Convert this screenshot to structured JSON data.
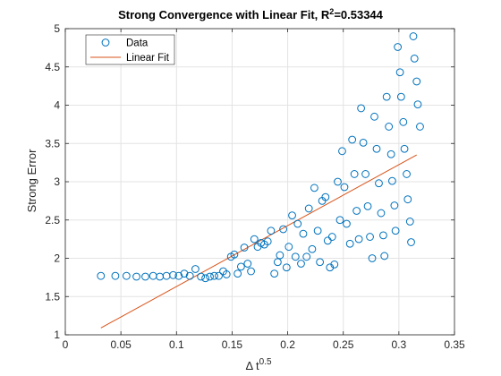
{
  "chart_data": {
    "type": "scatter",
    "title_main": "Strong Convergence with Linear Fit, R",
    "title_sup": "2",
    "title_tail": "=0.53344",
    "xlabel_main": "Δ t",
    "xlabel_sup": "0.5",
    "ylabel": "Strong Error",
    "xlim": [
      0,
      0.35
    ],
    "ylim": [
      1,
      5
    ],
    "xticks": [
      0,
      0.05,
      0.1,
      0.15,
      0.2,
      0.25,
      0.3,
      0.35
    ],
    "xtick_labels": [
      "0",
      "0.05",
      "0.1",
      "0.15",
      "0.2",
      "0.25",
      "0.3",
      "0.35"
    ],
    "yticks": [
      1,
      1.5,
      2,
      2.5,
      3,
      3.5,
      4,
      4.5,
      5
    ],
    "ytick_labels": [
      "1",
      "1.5",
      "2",
      "2.5",
      "3",
      "3.5",
      "4",
      "4.5",
      "5"
    ],
    "grid": true,
    "legend_position": "top-left",
    "colors": {
      "data": "#0072BD",
      "fit": "#D95319"
    },
    "series": [
      {
        "name": "Data",
        "style": "marker-circle",
        "points": [
          [
            0.032,
            1.77
          ],
          [
            0.045,
            1.77
          ],
          [
            0.055,
            1.77
          ],
          [
            0.064,
            1.76
          ],
          [
            0.072,
            1.76
          ],
          [
            0.079,
            1.77
          ],
          [
            0.085,
            1.76
          ],
          [
            0.091,
            1.77
          ],
          [
            0.097,
            1.78
          ],
          [
            0.102,
            1.77
          ],
          [
            0.107,
            1.8
          ],
          [
            0.112,
            1.77
          ],
          [
            0.117,
            1.86
          ],
          [
            0.122,
            1.76
          ],
          [
            0.126,
            1.74
          ],
          [
            0.13,
            1.76
          ],
          [
            0.134,
            1.77
          ],
          [
            0.138,
            1.77
          ],
          [
            0.142,
            1.83
          ],
          [
            0.145,
            1.79
          ],
          [
            0.149,
            2.02
          ],
          [
            0.152,
            2.05
          ],
          [
            0.155,
            1.8
          ],
          [
            0.158,
            1.89
          ],
          [
            0.161,
            2.14
          ],
          [
            0.164,
            1.93
          ],
          [
            0.167,
            1.83
          ],
          [
            0.17,
            2.25
          ],
          [
            0.173,
            2.15
          ],
          [
            0.176,
            2.2
          ],
          [
            0.179,
            2.18
          ],
          [
            0.182,
            2.22
          ],
          [
            0.185,
            2.36
          ],
          [
            0.188,
            1.8
          ],
          [
            0.191,
            1.95
          ],
          [
            0.193,
            2.04
          ],
          [
            0.196,
            2.38
          ],
          [
            0.199,
            1.88
          ],
          [
            0.201,
            2.15
          ],
          [
            0.204,
            2.56
          ],
          [
            0.207,
            2.02
          ],
          [
            0.209,
            2.45
          ],
          [
            0.212,
            1.93
          ],
          [
            0.214,
            2.32
          ],
          [
            0.217,
            2.02
          ],
          [
            0.219,
            2.65
          ],
          [
            0.222,
            2.12
          ],
          [
            0.224,
            2.92
          ],
          [
            0.227,
            2.36
          ],
          [
            0.229,
            1.95
          ],
          [
            0.231,
            2.75
          ],
          [
            0.234,
            2.8
          ],
          [
            0.236,
            2.23
          ],
          [
            0.238,
            1.88
          ],
          [
            0.24,
            2.28
          ],
          [
            0.242,
            1.92
          ],
          [
            0.245,
            3.0
          ],
          [
            0.247,
            2.5
          ],
          [
            0.249,
            3.4
          ],
          [
            0.251,
            2.93
          ],
          [
            0.253,
            2.45
          ],
          [
            0.256,
            2.19
          ],
          [
            0.258,
            3.55
          ],
          [
            0.26,
            3.1
          ],
          [
            0.262,
            2.62
          ],
          [
            0.264,
            2.25
          ],
          [
            0.266,
            3.96
          ],
          [
            0.268,
            3.51
          ],
          [
            0.27,
            3.1
          ],
          [
            0.272,
            2.68
          ],
          [
            0.274,
            2.28
          ],
          [
            0.276,
            2.0
          ],
          [
            0.278,
            3.85
          ],
          [
            0.28,
            3.43
          ],
          [
            0.282,
            2.98
          ],
          [
            0.284,
            2.59
          ],
          [
            0.286,
            2.3
          ],
          [
            0.287,
            2.03
          ],
          [
            0.289,
            4.11
          ],
          [
            0.291,
            3.72
          ],
          [
            0.293,
            3.36
          ],
          [
            0.294,
            3.01
          ],
          [
            0.296,
            2.69
          ],
          [
            0.297,
            2.36
          ],
          [
            0.299,
            4.76
          ],
          [
            0.301,
            4.43
          ],
          [
            0.302,
            4.11
          ],
          [
            0.304,
            3.78
          ],
          [
            0.305,
            3.43
          ],
          [
            0.307,
            3.1
          ],
          [
            0.308,
            2.77
          ],
          [
            0.31,
            2.48
          ],
          [
            0.311,
            2.21
          ],
          [
            0.313,
            4.9
          ],
          [
            0.314,
            4.61
          ],
          [
            0.316,
            4.31
          ],
          [
            0.317,
            4.01
          ],
          [
            0.319,
            3.72
          ]
        ]
      },
      {
        "name": "Linear Fit",
        "style": "line",
        "points": [
          [
            0.032,
            1.09
          ],
          [
            0.316,
            3.35
          ]
        ]
      }
    ]
  }
}
